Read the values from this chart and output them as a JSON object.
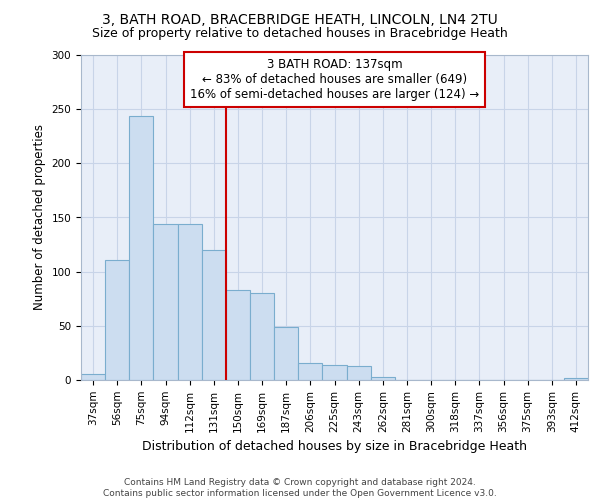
{
  "title": "3, BATH ROAD, BRACEBRIDGE HEATH, LINCOLN, LN4 2TU",
  "subtitle": "Size of property relative to detached houses in Bracebridge Heath",
  "xlabel": "Distribution of detached houses by size in Bracebridge Heath",
  "ylabel": "Number of detached properties",
  "categories": [
    "37sqm",
    "56sqm",
    "75sqm",
    "94sqm",
    "112sqm",
    "131sqm",
    "150sqm",
    "169sqm",
    "187sqm",
    "206sqm",
    "225sqm",
    "243sqm",
    "262sqm",
    "281sqm",
    "300sqm",
    "318sqm",
    "337sqm",
    "356sqm",
    "375sqm",
    "393sqm",
    "412sqm"
  ],
  "values": [
    6,
    111,
    244,
    144,
    144,
    120,
    83,
    80,
    49,
    16,
    14,
    13,
    3,
    0,
    0,
    0,
    0,
    0,
    0,
    0,
    2
  ],
  "bar_color": "#ccddf0",
  "bar_edge_color": "#7aadce",
  "vline_position": 6,
  "vline_color": "#cc0000",
  "annotation_text": "3 BATH ROAD: 137sqm\n← 83% of detached houses are smaller (649)\n16% of semi-detached houses are larger (124) →",
  "annotation_box_color": "#cc0000",
  "ylim": [
    0,
    300
  ],
  "yticks": [
    0,
    50,
    100,
    150,
    200,
    250,
    300
  ],
  "grid_color": "#c8d4e8",
  "background_color": "#e8eef8",
  "footer": "Contains HM Land Registry data © Crown copyright and database right 2024.\nContains public sector information licensed under the Open Government Licence v3.0.",
  "title_fontsize": 10,
  "subtitle_fontsize": 9,
  "xlabel_fontsize": 9,
  "ylabel_fontsize": 8.5,
  "tick_fontsize": 7.5,
  "annotation_fontsize": 8.5,
  "footer_fontsize": 6.5
}
